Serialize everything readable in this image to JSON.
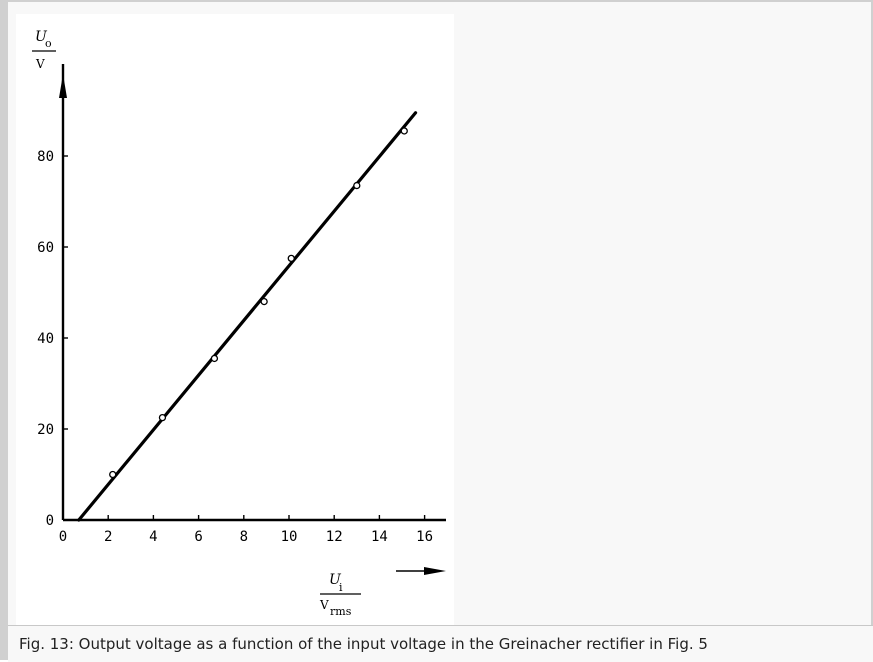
{
  "caption": "Fig. 13: Output voltage as a function of the input voltage in the Greinacher rectifier in Fig. 5",
  "chart_data": {
    "type": "scatter",
    "x_axis": {
      "symbol": "U",
      "subscript": "i",
      "unit": "V",
      "unit_subscript": "rms",
      "range": [
        0,
        17
      ],
      "ticks": [
        0,
        2,
        4,
        6,
        8,
        10,
        12,
        14,
        16
      ]
    },
    "y_axis": {
      "symbol": "U",
      "subscript": "o",
      "unit": "V",
      "range": [
        0,
        92
      ],
      "ticks": [
        0,
        20,
        40,
        60,
        80
      ]
    },
    "grid": false,
    "legend": "none",
    "points": [
      {
        "x": 2.2,
        "y": 10
      },
      {
        "x": 4.4,
        "y": 22.5
      },
      {
        "x": 6.7,
        "y": 35.5
      },
      {
        "x": 8.9,
        "y": 48
      },
      {
        "x": 10.1,
        "y": 57.5
      },
      {
        "x": 13,
        "y": 73.5
      },
      {
        "x": 15.1,
        "y": 85.5
      }
    ],
    "fit_line": {
      "from": {
        "x": 0.7,
        "y": 0
      },
      "to": {
        "x": 15.6,
        "y": 89.5
      }
    }
  }
}
